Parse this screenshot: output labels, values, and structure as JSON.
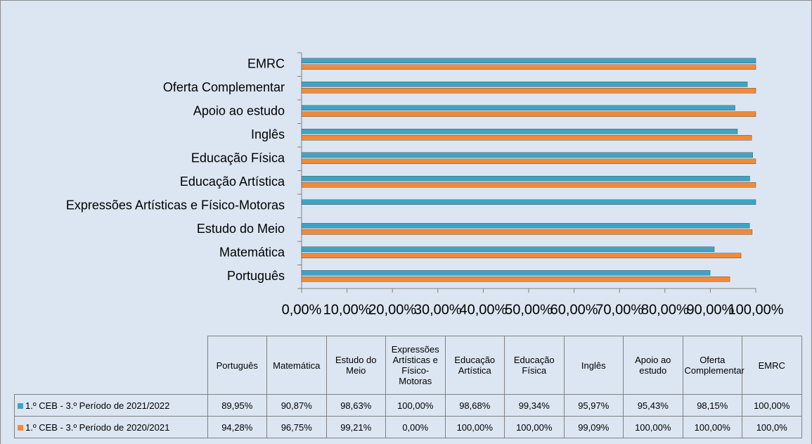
{
  "chart_data": {
    "type": "bar",
    "orientation": "horizontal",
    "categories": [
      "Português",
      "Matemática",
      "Estudo do Meio",
      "Expressões Artísticas e Físico-Motoras",
      "Educação Artística",
      "Educação Física",
      "Inglês",
      "Apoio ao estudo",
      "Oferta Complementar",
      "EMRC"
    ],
    "series": [
      {
        "name": "1.º CEB - 3.º Período de 2021/2022",
        "color": "#3fa3c4",
        "values": [
          89.95,
          90.87,
          98.63,
          100,
          98.68,
          99.34,
          95.97,
          95.43,
          98.15,
          100
        ],
        "value_labels": [
          "89,95%",
          "90,87%",
          "98,63%",
          "100,00%",
          "98,68%",
          "99,34%",
          "95,97%",
          "95,43%",
          "98,15%",
          "100,00%"
        ]
      },
      {
        "name": "1.º CEB - 3.º Período de 2020/2021",
        "color": "#f08a3a",
        "values": [
          94.28,
          96.75,
          99.21,
          0,
          100,
          100,
          99.09,
          100,
          100,
          100
        ],
        "value_labels": [
          "94,28%",
          "96,75%",
          "99,21%",
          "0,00%",
          "100,00%",
          "100,00%",
          "99,09%",
          "100,00%",
          "100,00%",
          "100,0%"
        ]
      }
    ],
    "xlim": [
      0,
      100
    ],
    "xticks": [
      {
        "value": 0,
        "label": "0,00%"
      },
      {
        "value": 10,
        "label": "10,00%"
      },
      {
        "value": 20,
        "label": "20,00%"
      },
      {
        "value": 30,
        "label": "30,00%"
      },
      {
        "value": 40,
        "label": "40,00%"
      },
      {
        "value": 50,
        "label": "50,00%"
      },
      {
        "value": 60,
        "label": "60,00%"
      },
      {
        "value": 70,
        "label": "70,00%"
      },
      {
        "value": 80,
        "label": "80,00%"
      },
      {
        "value": 90,
        "label": "90,00%"
      },
      {
        "value": 100,
        "label": "100,00%"
      }
    ]
  }
}
